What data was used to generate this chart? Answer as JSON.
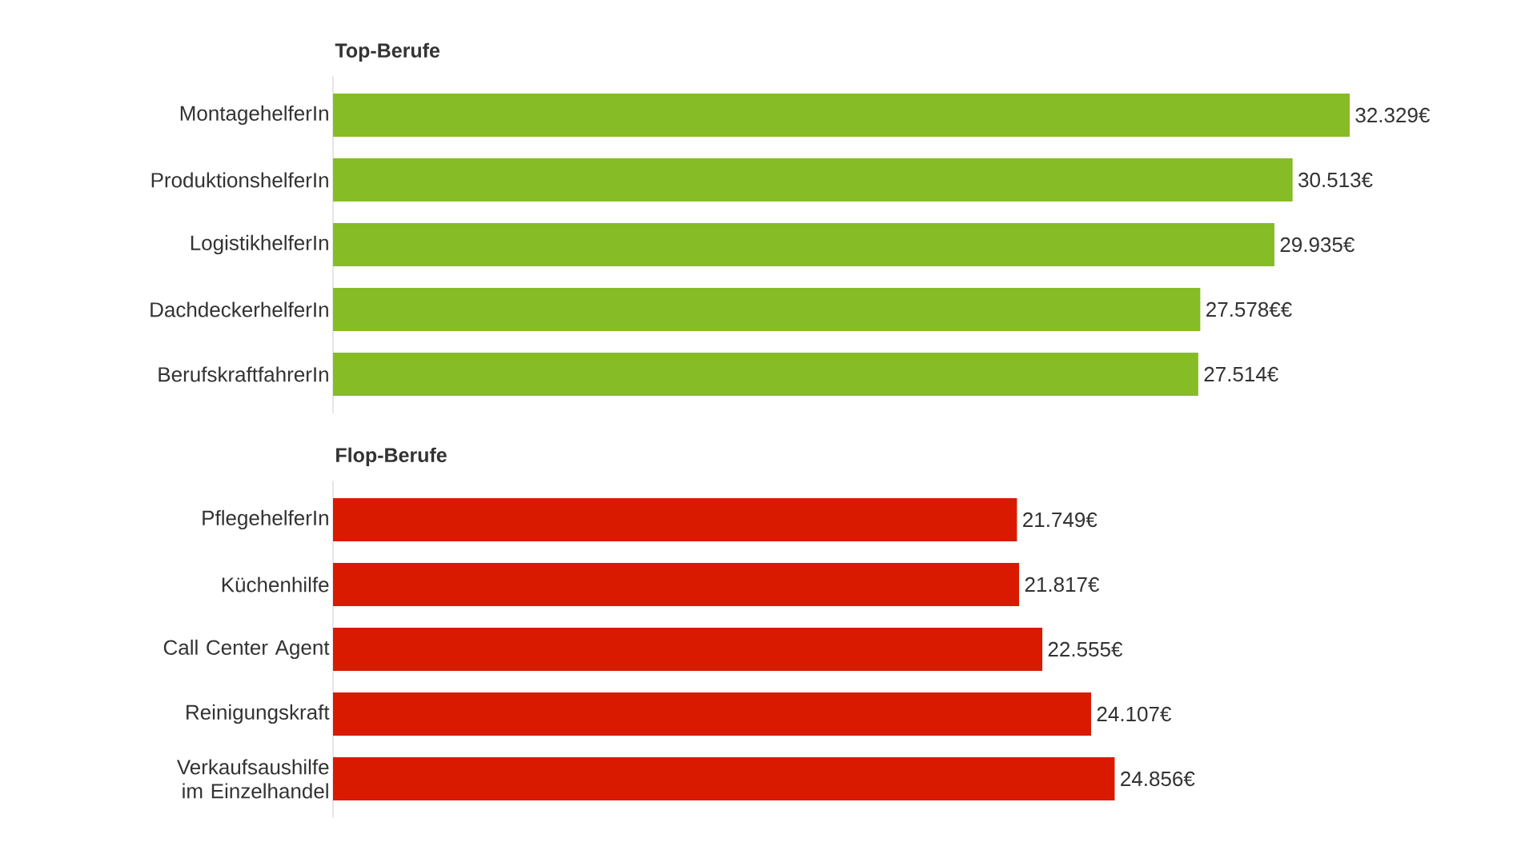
{
  "chart_data": [
    {
      "type": "bar",
      "orientation": "horizontal",
      "title": "Top-Berufe",
      "color": "#86bc25",
      "categories": [
        "MontagehelferIn",
        "ProduktionshelferIn",
        "LogistikhelferIn",
        "DachdeckerhelferIn",
        "BerufskraftfahrerIn"
      ],
      "values": [
        32329,
        30513,
        29935,
        27578,
        27514
      ],
      "value_labels": [
        "32.329€",
        "30.513€",
        "29.935€",
        "27.578€€",
        "27.514€"
      ]
    },
    {
      "type": "bar",
      "orientation": "horizontal",
      "title": "Flop-Berufe",
      "color": "#d91a00",
      "categories": [
        "PflegehelferIn",
        "Küchenhilfe",
        "Call Center Agent",
        "Reinigungskraft",
        "Verkaufsaushilfe im Einzelhandel"
      ],
      "values": [
        21749,
        21817,
        22555,
        24107,
        24856
      ],
      "value_labels": [
        "21.749€",
        "21.817€",
        "22.555€",
        "24.107€",
        "24.856€"
      ]
    }
  ]
}
